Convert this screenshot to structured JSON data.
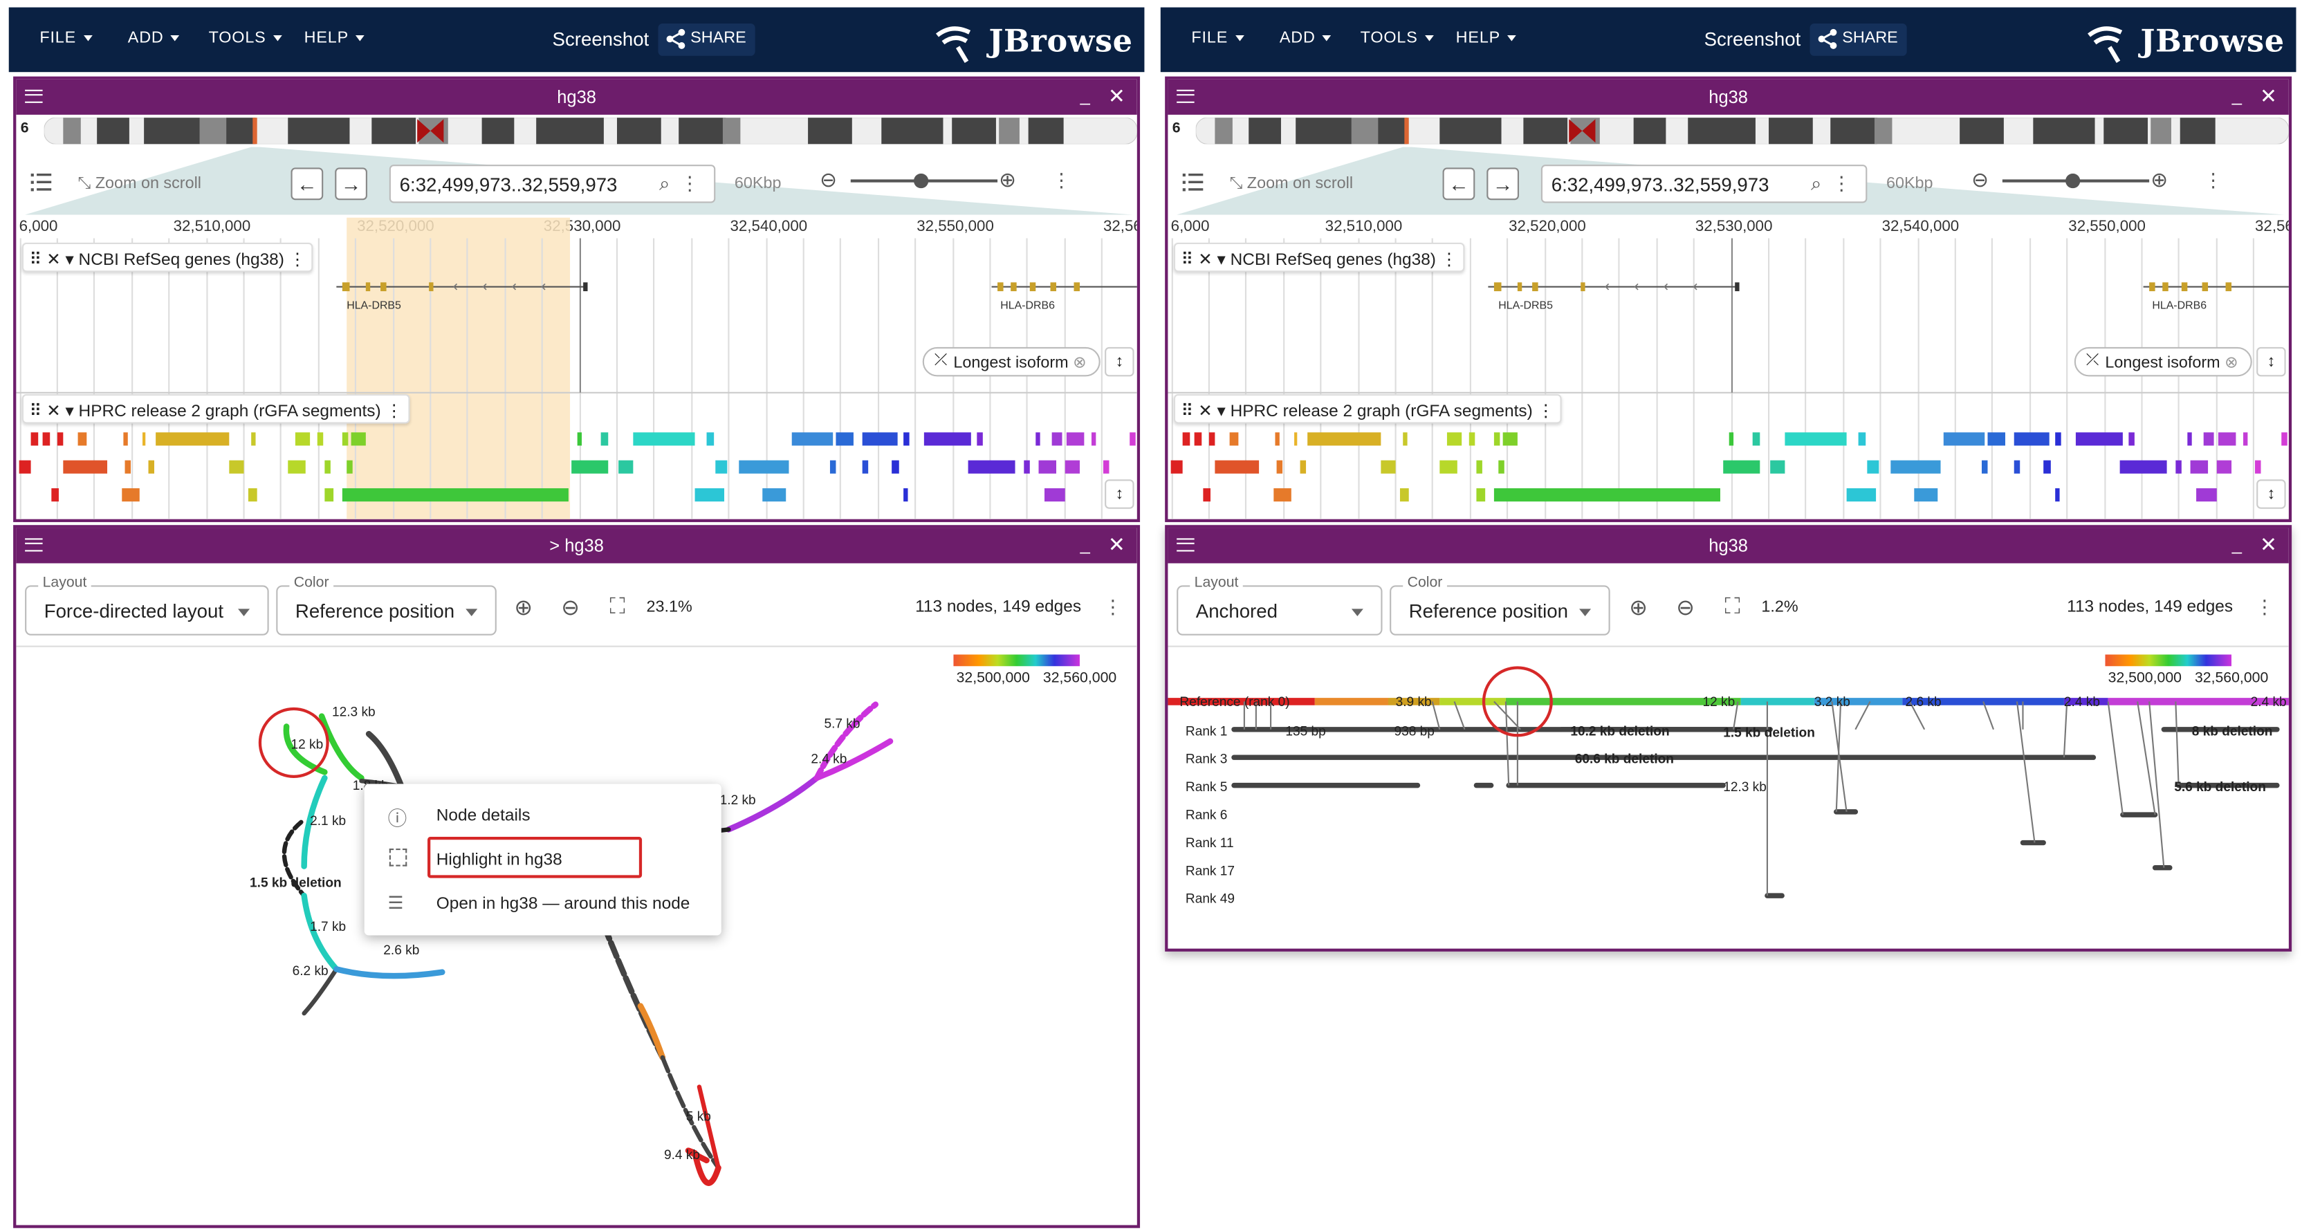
{
  "topbar": {
    "menus": [
      "FILE",
      "ADD",
      "TOOLS",
      "HELP"
    ],
    "screenshot_label": "Screenshot",
    "share_label": "SHARE",
    "logo": "JBrowse"
  },
  "views": [
    {
      "lgv_title": "hg38",
      "chrom": "6",
      "zoom_scroll": "Zoom on scroll",
      "locstring": "6:32,499,973..32,559,973",
      "bp_label": "60Kbp",
      "ruler_ticks": [
        "6,000",
        "32,510,000",
        "32,520,000",
        "32,530,000",
        "32,540,000",
        "32,550,000",
        "32,56"
      ],
      "gene_track": "NCBI RefSeq genes (hg38)",
      "genes": [
        "HLA-DRB5",
        "HLA-DRB6"
      ],
      "isoform_chip": "Longest isoform",
      "graph_track": "HPRC release 2 graph (rGFA segments)",
      "graph_title": "hg38",
      "layout_label": "Layout",
      "layout_value": "",
      "color_label": "Color",
      "color_value": "Reference position",
      "zoom_pct": "",
      "counts": "113 nodes, 149 edges",
      "legend": [
        "32,500,000",
        "32,560,000"
      ]
    }
  ],
  "left": {
    "graph_title": "> hg38",
    "layout_value": "Force-directed layout",
    "zoom_pct": "23.1%",
    "labels": [
      "12.3 kb",
      "12 kb",
      "1.8 kb",
      "2.1 kb",
      "1.5 kb deletion",
      "1.7 kb",
      "2.6 kb",
      "6.2 kb",
      "5.7 kb",
      "2.4 kb",
      "1.2 kb",
      "5 kb",
      "9.4 kb"
    ],
    "context_menu": [
      "Node details",
      "Highlight in hg38",
      "Open in hg38 — around this node"
    ]
  },
  "right": {
    "graph_title": "hg38",
    "layout_value": "Anchored",
    "zoom_pct": "1.2%",
    "ranks": [
      "Reference (rank 0)",
      "Rank 1",
      "Rank 3",
      "Rank 5",
      "Rank 6",
      "Rank 11",
      "Rank 17",
      "Rank 49"
    ],
    "ref_labels": [
      "3.9 kb",
      "12 kb",
      "3.2 kb",
      "2.6 kb",
      "2.4 kb",
      "2.4 kb"
    ],
    "rank1_labels": [
      "135 bp",
      "938 bp",
      "10.2 kb deletion",
      "1.5 kb deletion",
      "8 kb deletion"
    ],
    "rank3_labels": [
      "60.6 kb deletion"
    ],
    "rank5_labels": [
      "12.3 kb",
      "5.6 kb deletion"
    ]
  },
  "colors": {
    "header": "#0a2143",
    "panel": "#6d1d6b",
    "highlight": "#fbe5c0",
    "annot": "#d62828"
  }
}
